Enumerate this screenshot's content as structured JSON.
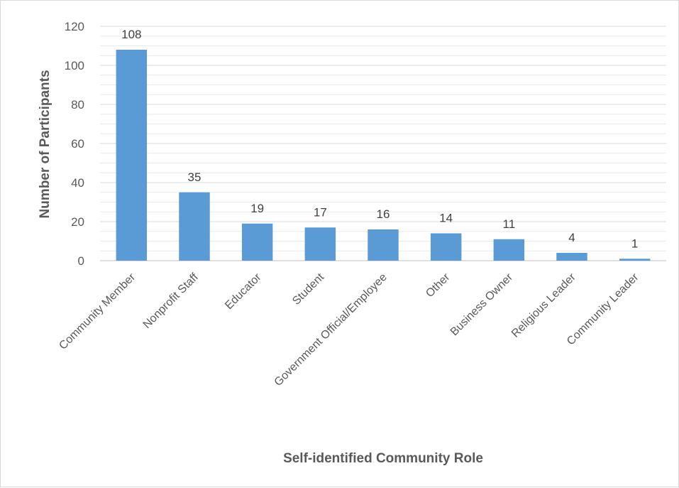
{
  "chart_data": {
    "type": "bar",
    "title": "",
    "xlabel": "Self-identified Community Role",
    "ylabel": "Number of Participants",
    "ylim": [
      0,
      120
    ],
    "yticks": [
      0,
      20,
      40,
      60,
      80,
      100,
      120
    ],
    "grid": true,
    "legend": "none",
    "categories": [
      "Community Member",
      "Nonprofit Staff",
      "Educator",
      "Student",
      "Government Official/Employee",
      "Other",
      "Business Owner",
      "Religious Leader",
      "Community Leader"
    ],
    "values": [
      108,
      35,
      19,
      17,
      16,
      14,
      11,
      4,
      1
    ],
    "bar_color": "#5b9bd5"
  }
}
